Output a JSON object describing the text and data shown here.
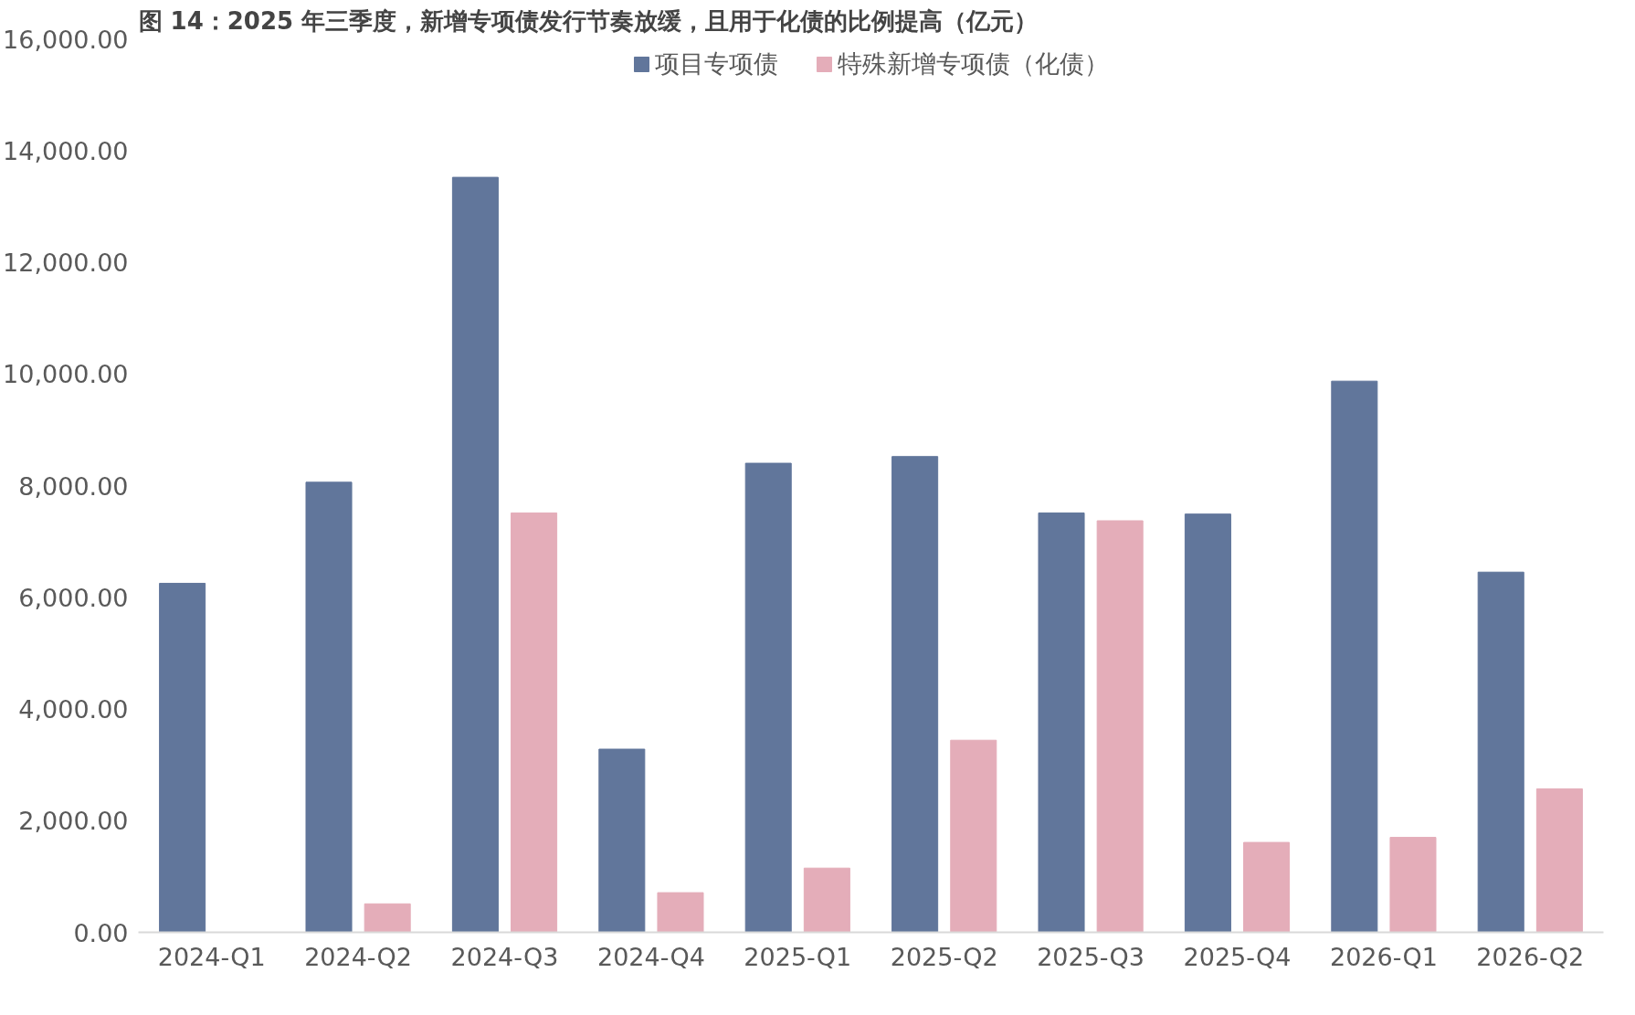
{
  "chart_data": {
    "type": "bar",
    "title": "图 14：2025 年三季度，新增专项债发行节奏放缓，且用于化债的比例提高（亿元）",
    "categories": [
      "2024-Q1",
      "2024-Q2",
      "2024-Q3",
      "2024-Q4",
      "2025-Q1",
      "2025-Q2",
      "2025-Q3",
      "2025-Q4",
      "2026-Q1",
      "2026-Q2"
    ],
    "series": [
      {
        "name": "项目专项债",
        "color": "#61769b",
        "values": [
          6250,
          8060,
          13520,
          3280,
          8400,
          8520,
          7510,
          7490,
          9870,
          6450
        ]
      },
      {
        "name": "特殊新增专项债（化债）",
        "color": "#e4adb9",
        "values": [
          null,
          510,
          7510,
          710,
          1150,
          3440,
          7370,
          1610,
          1700,
          2570
        ]
      }
    ],
    "ylim": [
      0,
      16000
    ],
    "yticks": [
      {
        "value": 0,
        "label": "0.00"
      },
      {
        "value": 2000,
        "label": "2,000.00"
      },
      {
        "value": 4000,
        "label": "4,000.00"
      },
      {
        "value": 6000,
        "label": "6,000.00"
      },
      {
        "value": 8000,
        "label": "8,000.00"
      },
      {
        "value": 10000,
        "label": "10,000.00"
      },
      {
        "value": 12000,
        "label": "12,000.00"
      },
      {
        "value": 14000,
        "label": "14,000.00"
      },
      {
        "value": 16000,
        "label": "16,000.00"
      }
    ],
    "grid": false,
    "legend": "top"
  }
}
